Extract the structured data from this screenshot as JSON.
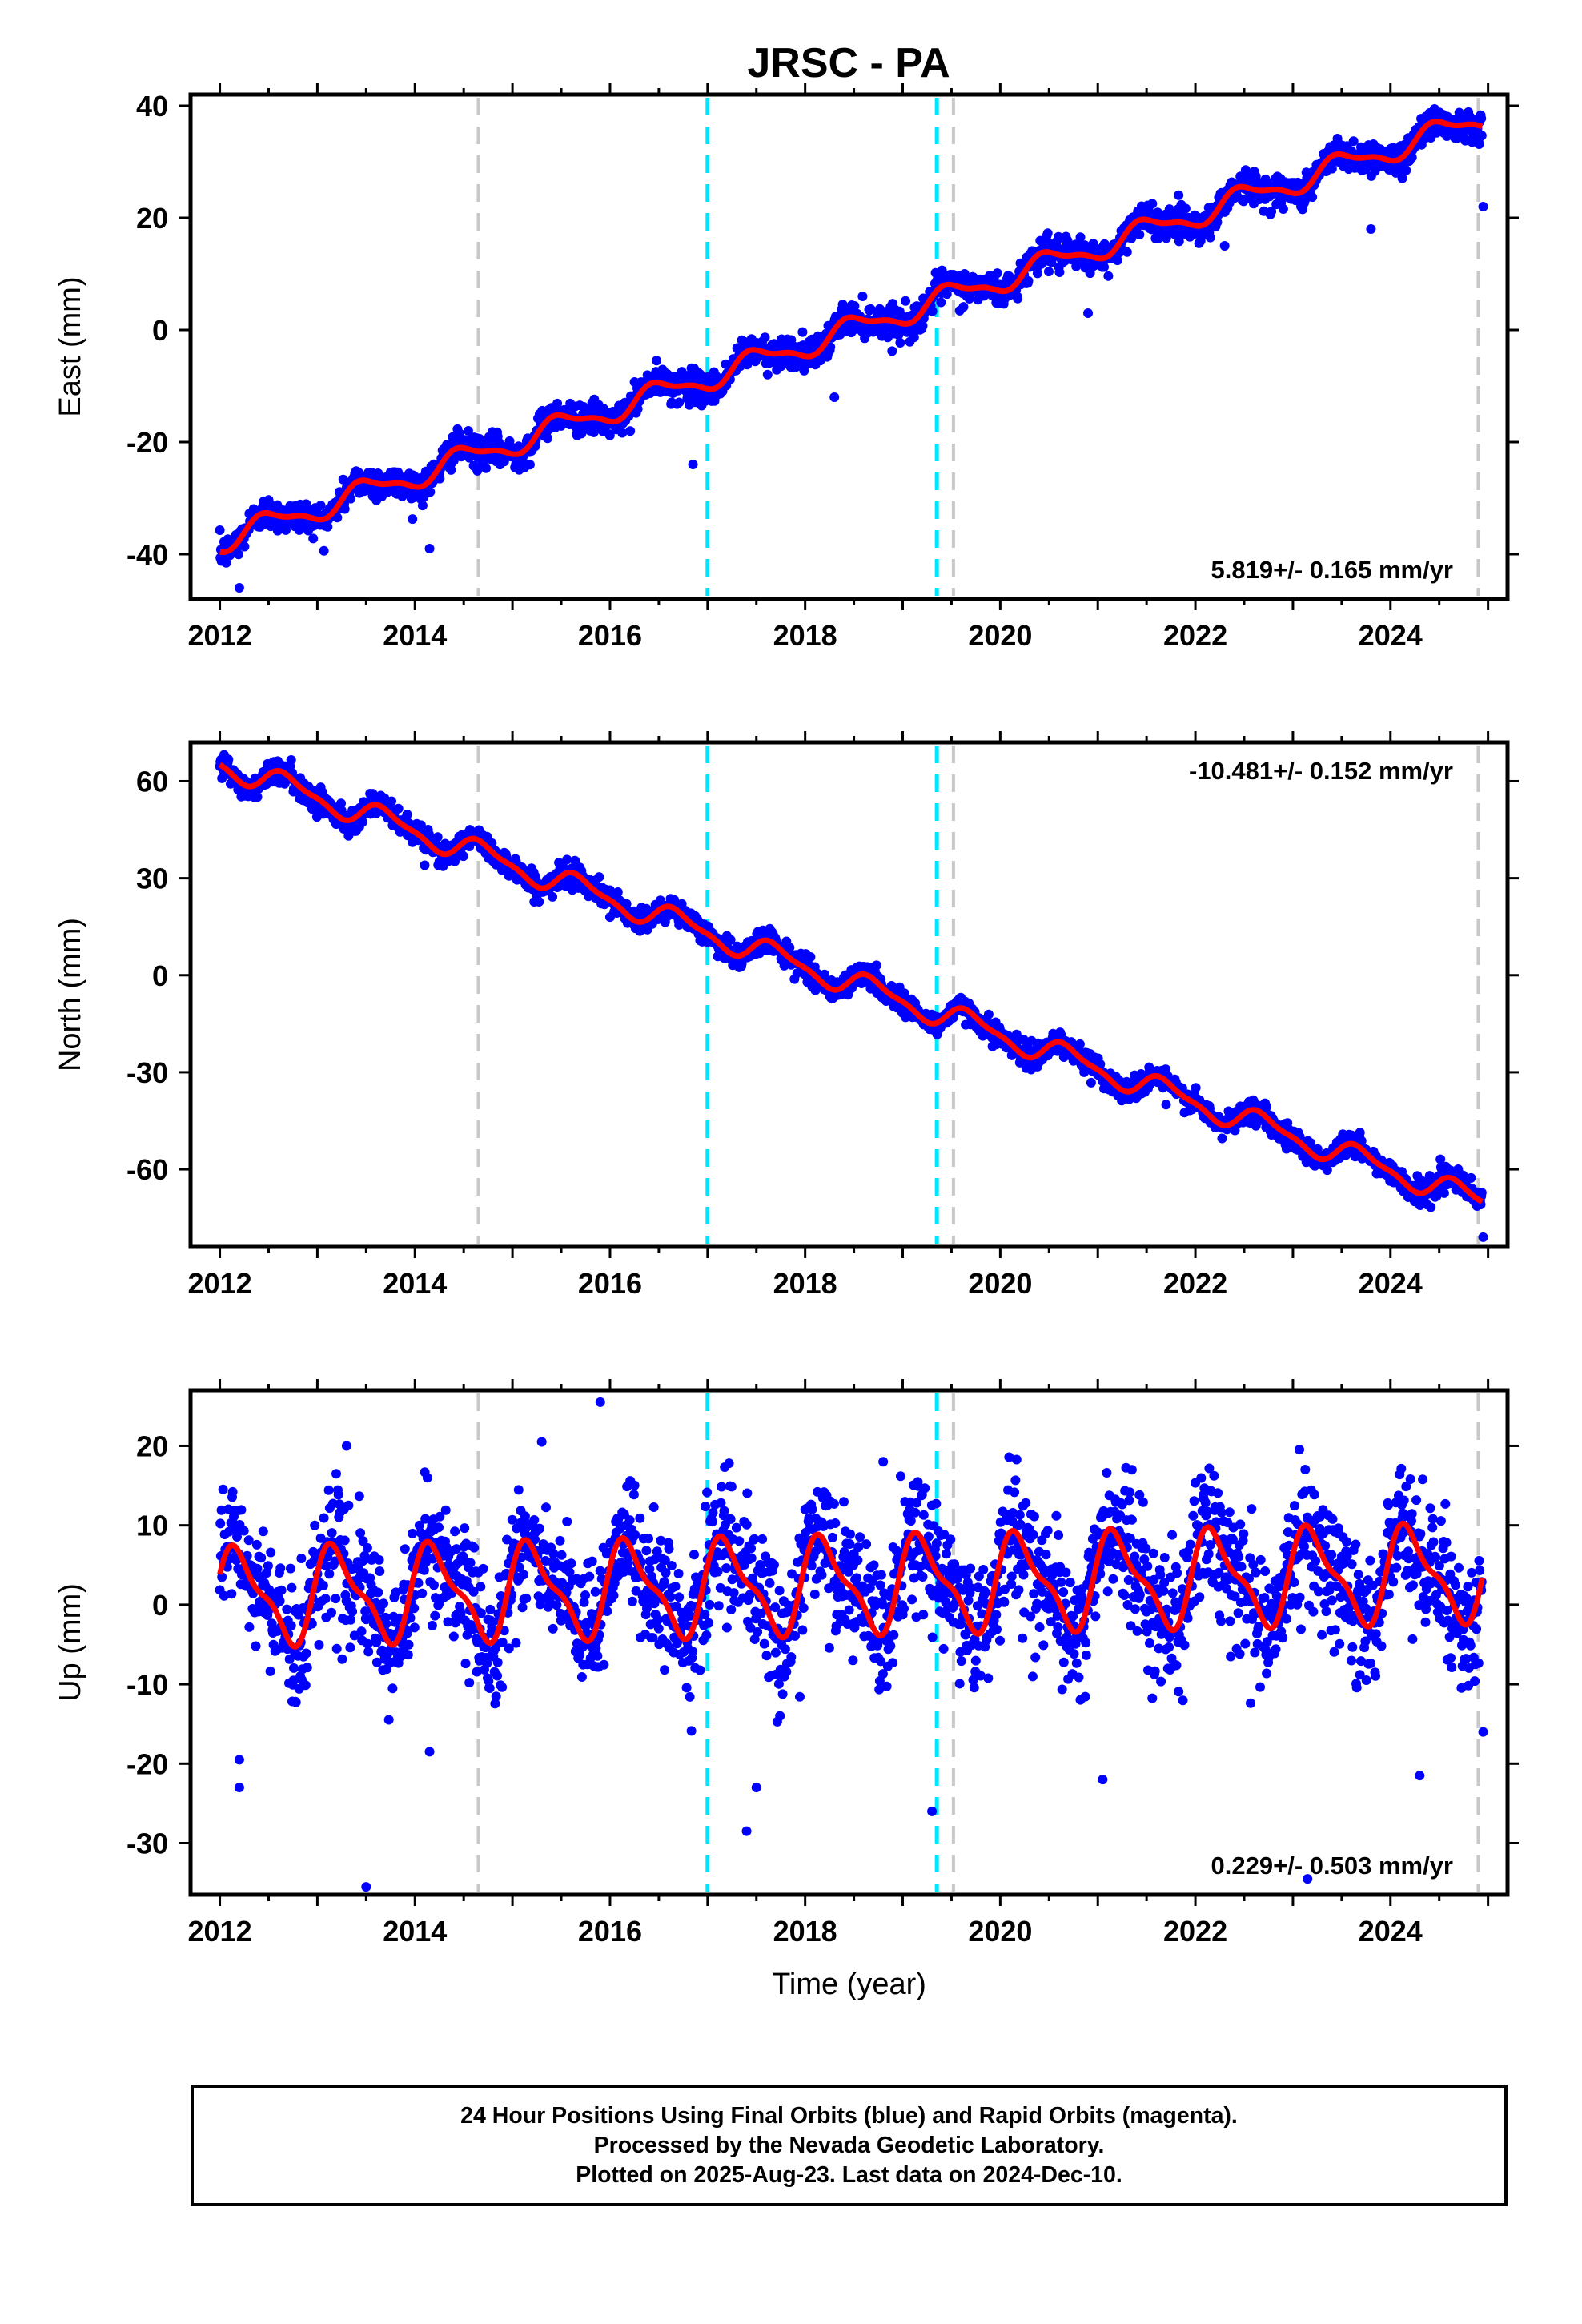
{
  "chart_data": {
    "type": "scatter",
    "title": "JRSC - PA",
    "xlabel": "Time (year)",
    "xlim": [
      2011.7,
      2025.2
    ],
    "xticks": [
      2012,
      2014,
      2016,
      2018,
      2020,
      2022,
      2024
    ],
    "vertical_lines": [
      {
        "x": 2014.65,
        "color": "#c8c8c8"
      },
      {
        "x": 2017.0,
        "color": "#00e5ff"
      },
      {
        "x": 2019.35,
        "color": "#00e5ff"
      },
      {
        "x": 2019.52,
        "color": "#c8c8c8"
      },
      {
        "x": 2024.9,
        "color": "#c8c8c8"
      }
    ],
    "colors": {
      "observations": "#0000ff",
      "model": "#ff0000"
    },
    "panels": [
      {
        "ylabel": "East (mm)",
        "ylim": [
          -48,
          42
        ],
        "yticks": [
          -40,
          -20,
          0,
          20,
          40
        ],
        "rate_text": "5.819+/- 0.165 mm/yr",
        "rate_position": "bottom-right",
        "trend_start": -37.6,
        "rate": 5.819,
        "annual_amplitude": 2.0,
        "annual_phase": 0.75,
        "end_value": 38.5,
        "scatter_sigma": 1.4,
        "outliers": [
          [
            2012.2,
            -46
          ],
          [
            2014.15,
            -39
          ],
          [
            2016.85,
            -24
          ],
          [
            2018.3,
            -12
          ],
          [
            2020.9,
            3
          ],
          [
            2022.3,
            15
          ],
          [
            2023.8,
            18
          ],
          [
            2024.95,
            22
          ]
        ]
      },
      {
        "ylabel": "North (mm)",
        "ylim": [
          -84,
          72
        ],
        "yticks": [
          -60,
          -30,
          0,
          30,
          60
        ],
        "rate_text": "-10.481+/- 0.152 mm/yr",
        "rate_position": "top-right",
        "trend_start": 65.5,
        "rate": -10.481,
        "annual_amplitude": 3.5,
        "annual_phase": 0.55,
        "end_value": -69,
        "scatter_sigma": 1.8,
        "outliers": [
          [
            2014.1,
            34
          ],
          [
            2016.0,
            18
          ],
          [
            2019.1,
            -13
          ],
          [
            2021.7,
            -40
          ],
          [
            2023.1,
            -56
          ],
          [
            2024.95,
            -81
          ]
        ]
      },
      {
        "ylabel": "Up (mm)",
        "ylim": [
          -36.5,
          27
        ],
        "yticks": [
          -30,
          -20,
          -10,
          0,
          10,
          20
        ],
        "rate_text": "0.229+/- 0.503 mm/yr",
        "rate_position": "bottom-right",
        "trend_start": 1.0,
        "rate": 0.229,
        "annual_amplitude": 5.5,
        "annual_phase": 0.05,
        "end_value": -1,
        "scatter_sigma": 4.0,
        "outliers": [
          [
            2012.2,
            -23
          ],
          [
            2012.2,
            -19.5
          ],
          [
            2013.3,
            20
          ],
          [
            2013.5,
            -35.5
          ],
          [
            2014.15,
            -18.5
          ],
          [
            2015.3,
            20.5
          ],
          [
            2015.9,
            25.5
          ],
          [
            2017.4,
            -28.5
          ],
          [
            2017.5,
            -23
          ],
          [
            2018.8,
            18
          ],
          [
            2019.3,
            -26
          ],
          [
            2021.35,
            17
          ],
          [
            2021.05,
            -22
          ],
          [
            2023.15,
            -34.5
          ],
          [
            2024.3,
            -21.5
          ],
          [
            2024.95,
            -16
          ]
        ]
      }
    ]
  },
  "footer": {
    "line1": "24 Hour Positions Using Final Orbits (blue) and Rapid Orbits (magenta).",
    "line2": "Processed by the Nevada Geodetic Laboratory.",
    "line3": "Plotted on 2025-Aug-23. Last data on 2024-Dec-10."
  }
}
